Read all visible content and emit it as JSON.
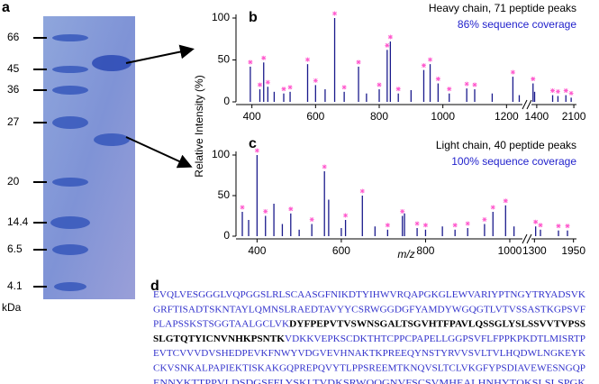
{
  "panel_labels": [
    "a",
    "b",
    "c",
    "d"
  ],
  "gel": {
    "markers": [
      "66",
      "45",
      "36",
      "27",
      "20",
      "14.4",
      "6.5",
      "4.1"
    ],
    "unit": "kDa"
  },
  "shared_ylabel": "Relative Intensity (%)",
  "shared_xlabel": "m/z",
  "chart_data": [
    {
      "type": "spectrum",
      "title": "Heavy chain, 71 peptide peaks",
      "subtitle": "86% sequence coverage",
      "color": "#1a1a8c",
      "subtitle_color": "#2222cc",
      "marker_color": "#ff55cc",
      "xsegments": [
        [
          350,
          1250
        ],
        [
          1300,
          2150
        ]
      ],
      "ylim": [
        0,
        100
      ],
      "yticks": [
        0,
        50,
        100
      ],
      "xticks": [
        400,
        600,
        800,
        1000,
        1200,
        1400,
        2100
      ],
      "x": [
        395,
        425,
        437,
        450,
        470,
        500,
        520,
        575,
        600,
        630,
        660,
        690,
        735,
        760,
        800,
        825,
        835,
        860,
        900,
        940,
        960,
        985,
        1020,
        1075,
        1100,
        1155,
        1220,
        1240,
        1330,
        1360,
        1700,
        1800,
        1950,
        2050
      ],
      "values": [
        42,
        15,
        47,
        18,
        12,
        10,
        12,
        45,
        20,
        15,
        100,
        12,
        42,
        10,
        15,
        62,
        72,
        10,
        14,
        38,
        45,
        22,
        10,
        16,
        15,
        10,
        30,
        8,
        22,
        12,
        8,
        7,
        8,
        5
      ],
      "marked": [
        true,
        true,
        true,
        true,
        false,
        true,
        true,
        true,
        true,
        false,
        true,
        true,
        true,
        false,
        true,
        true,
        true,
        true,
        false,
        true,
        true,
        true,
        true,
        true,
        true,
        false,
        true,
        false,
        true,
        false,
        true,
        true,
        true,
        true
      ]
    },
    {
      "type": "spectrum",
      "title": "Light chain, 40 peptide peaks",
      "subtitle": "100% sequence coverage",
      "color": "#1a1a8c",
      "subtitle_color": "#2222cc",
      "marker_color": "#ff55cc",
      "xsegments": [
        [
          350,
          1030
        ],
        [
          1250,
          2000
        ]
      ],
      "ylim": [
        0,
        100
      ],
      "yticks": [
        0,
        50,
        100
      ],
      "xticks": [
        400,
        600,
        800,
        1000,
        1300,
        1950
      ],
      "x": [
        365,
        380,
        400,
        420,
        440,
        460,
        480,
        500,
        530,
        560,
        570,
        600,
        610,
        650,
        680,
        710,
        745,
        750,
        780,
        800,
        840,
        870,
        900,
        940,
        960,
        990,
        1010,
        1320,
        1400,
        1700,
        1850
      ],
      "values": [
        30,
        20,
        100,
        25,
        40,
        15,
        28,
        8,
        15,
        80,
        45,
        10,
        20,
        50,
        12,
        8,
        25,
        28,
        10,
        8,
        12,
        8,
        10,
        15,
        30,
        38,
        12,
        12,
        8,
        7,
        7
      ],
      "marked": [
        true,
        false,
        true,
        true,
        false,
        false,
        true,
        false,
        true,
        true,
        false,
        false,
        true,
        true,
        false,
        true,
        true,
        false,
        true,
        true,
        false,
        true,
        true,
        true,
        true,
        true,
        false,
        true,
        true,
        true,
        true
      ]
    }
  ],
  "sequence": [
    [
      {
        "text": "EVQLVESGGGLVQPGGSLRLSCAASGFNIKDTYIHWVRQAPGKGLEWVARIYPTNGYTRYADSVK",
        "bold": false
      }
    ],
    [
      {
        "text": "GRFTISADTSKNTAYLQMNSLRAEDTAVYYCSRWGGDGFYAMDYWGQGTLVTVSSASTKGPSVF",
        "bold": false
      }
    ],
    [
      {
        "text": "PLAPSSKSTSGGTAALGCLVK",
        "bold": false
      },
      {
        "text": "DYFPEPVTVSWNSGALTSGVHTFPAVLQSSGLYSLSSVVTVPSS",
        "bold": true
      }
    ],
    [
      {
        "text": "SLGTQTYICNVNHKPSNTK",
        "bold": true
      },
      {
        "text": "VDKKVEPKSCDKTHTCPPCPAPELLGGPSVFLFPPKPKDTLMISRTP",
        "bold": false
      }
    ],
    [
      {
        "text": "EVTCVVVDVSHEDPEVKFNWYVDGVEVHNAKTKPREEQYNSTYRVVSVLTVLHQDWLNGKEYK",
        "bold": false
      }
    ],
    [
      {
        "text": "CKVSNKALPAPIEKTISKAKGQPREPQVYTLPPSREEMTKNQVSLTCLVKGFYPSDIAVEWESNGQP",
        "bold": false
      }
    ],
    [
      {
        "text": "ENNYKTTPPVLDSDGSFFLYSKLTVDKSRWQQGNVFSCSVMHEALHNHYTQKSLSLSPGK",
        "bold": false
      }
    ]
  ]
}
